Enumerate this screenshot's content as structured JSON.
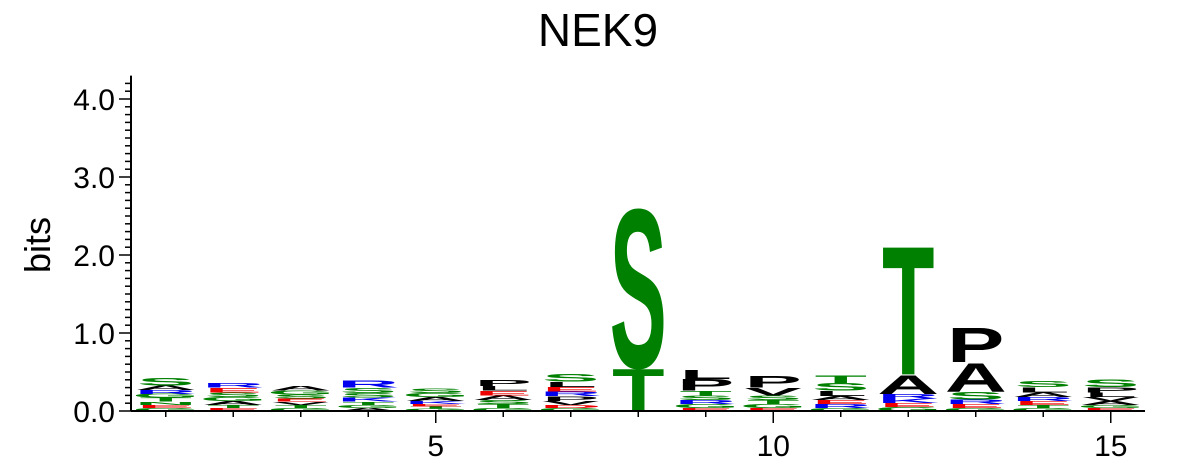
{
  "chart_data": {
    "type": "sequence_logo",
    "title": "NEK9",
    "ylabel": "bits",
    "xlabel": "",
    "ylim": [
      0,
      4.3
    ],
    "y_ticks": [
      "0.0",
      "1.0",
      "2.0",
      "3.0",
      "4.0"
    ],
    "x_ticks": [
      "5",
      "10",
      "15"
    ],
    "x_tick_positions": [
      5,
      10,
      15
    ],
    "positions": [
      1,
      2,
      3,
      4,
      5,
      6,
      7,
      8,
      9,
      10,
      11,
      12,
      13,
      14,
      15
    ],
    "colors": {
      "S": "#008000",
      "T": "#008000",
      "G": "#008000",
      "Y": "#008000",
      "C": "#008000",
      "N": "#008000",
      "Q": "#008000",
      "A": "#000000",
      "P": "#000000",
      "L": "#000000",
      "V": "#000000",
      "I": "#000000",
      "M": "#000000",
      "F": "#000000",
      "W": "#000000",
      "R": "#0000ee",
      "K": "#0000ee",
      "H": "#0000ee",
      "D": "#ee0000",
      "E": "#ee0000"
    },
    "columns": [
      {
        "pos": 1,
        "stack": [
          [
            "G",
            0.04
          ],
          [
            "E",
            0.04
          ],
          [
            "N",
            0.04
          ],
          [
            "T",
            0.05
          ],
          [
            "G",
            0.05
          ],
          [
            "R",
            0.05
          ],
          [
            "A",
            0.06
          ],
          [
            "S",
            0.1
          ]
        ]
      },
      {
        "pos": 2,
        "stack": [
          [
            "E",
            0.04
          ],
          [
            "T",
            0.04
          ],
          [
            "A",
            0.05
          ],
          [
            "G",
            0.05
          ],
          [
            "S",
            0.06
          ],
          [
            "E",
            0.06
          ],
          [
            "R",
            0.06
          ]
        ]
      },
      {
        "pos": 3,
        "stack": [
          [
            "G",
            0.04
          ],
          [
            "T",
            0.04
          ],
          [
            "V",
            0.04
          ],
          [
            "E",
            0.04
          ],
          [
            "S",
            0.05
          ],
          [
            "G",
            0.05
          ],
          [
            "A",
            0.06
          ]
        ]
      },
      {
        "pos": 4,
        "stack": [
          [
            "A",
            0.04
          ],
          [
            "G",
            0.04
          ],
          [
            "T",
            0.04
          ],
          [
            "K",
            0.05
          ],
          [
            "S",
            0.06
          ],
          [
            "S",
            0.07
          ],
          [
            "R",
            0.09
          ]
        ]
      },
      {
        "pos": 5,
        "stack": [
          [
            "G",
            0.03
          ],
          [
            "T",
            0.03
          ],
          [
            "E",
            0.03
          ],
          [
            "K",
            0.04
          ],
          [
            "A",
            0.05
          ],
          [
            "G",
            0.05
          ],
          [
            "S",
            0.06
          ]
        ]
      },
      {
        "pos": 6,
        "stack": [
          [
            "G",
            0.04
          ],
          [
            "T",
            0.05
          ],
          [
            "S",
            0.05
          ],
          [
            "A",
            0.06
          ],
          [
            "E",
            0.06
          ],
          [
            "L",
            0.06
          ],
          [
            "P",
            0.08
          ]
        ]
      },
      {
        "pos": 7,
        "stack": [
          [
            "G",
            0.04
          ],
          [
            "D",
            0.04
          ],
          [
            "V",
            0.05
          ],
          [
            "P",
            0.06
          ],
          [
            "R",
            0.06
          ],
          [
            "E",
            0.06
          ],
          [
            "L",
            0.07
          ],
          [
            "S",
            0.1
          ]
        ]
      },
      {
        "pos": 8,
        "stack": [
          [
            "T",
            0.56
          ],
          [
            "S",
            2.1
          ]
        ]
      },
      {
        "pos": 9,
        "stack": [
          [
            "E",
            0.04
          ],
          [
            "G",
            0.05
          ],
          [
            "R",
            0.05
          ],
          [
            "S",
            0.06
          ],
          [
            "T",
            0.06
          ],
          [
            "P",
            0.15
          ],
          [
            "L",
            0.12
          ]
        ]
      },
      {
        "pos": 10,
        "stack": [
          [
            "E",
            0.04
          ],
          [
            "G",
            0.05
          ],
          [
            "T",
            0.05
          ],
          [
            "S",
            0.06
          ],
          [
            "V",
            0.1
          ],
          [
            "P",
            0.15
          ]
        ]
      },
      {
        "pos": 11,
        "stack": [
          [
            "G",
            0.04
          ],
          [
            "R",
            0.05
          ],
          [
            "E",
            0.05
          ],
          [
            "A",
            0.05
          ],
          [
            "L",
            0.07
          ],
          [
            "S",
            0.1
          ],
          [
            "T",
            0.1
          ]
        ]
      },
      {
        "pos": 12,
        "stack": [
          [
            "G",
            0.05
          ],
          [
            "E",
            0.05
          ],
          [
            "K",
            0.06
          ],
          [
            "R",
            0.06
          ],
          [
            "A",
            0.25
          ],
          [
            "T",
            1.7
          ]
        ]
      },
      {
        "pos": 13,
        "stack": [
          [
            "G",
            0.04
          ],
          [
            "E",
            0.05
          ],
          [
            "R",
            0.06
          ],
          [
            "S",
            0.1
          ],
          [
            "A",
            0.38
          ],
          [
            "P",
            0.45
          ]
        ]
      },
      {
        "pos": 14,
        "stack": [
          [
            "G",
            0.04
          ],
          [
            "T",
            0.04
          ],
          [
            "E",
            0.05
          ],
          [
            "R",
            0.05
          ],
          [
            "A",
            0.06
          ],
          [
            "L",
            0.07
          ],
          [
            "S",
            0.08
          ]
        ]
      },
      {
        "pos": 15,
        "stack": [
          [
            "E",
            0.04
          ],
          [
            "G",
            0.04
          ],
          [
            "A",
            0.05
          ],
          [
            "V",
            0.05
          ],
          [
            "L",
            0.06
          ],
          [
            "P",
            0.07
          ],
          [
            "S",
            0.1
          ]
        ]
      }
    ]
  }
}
